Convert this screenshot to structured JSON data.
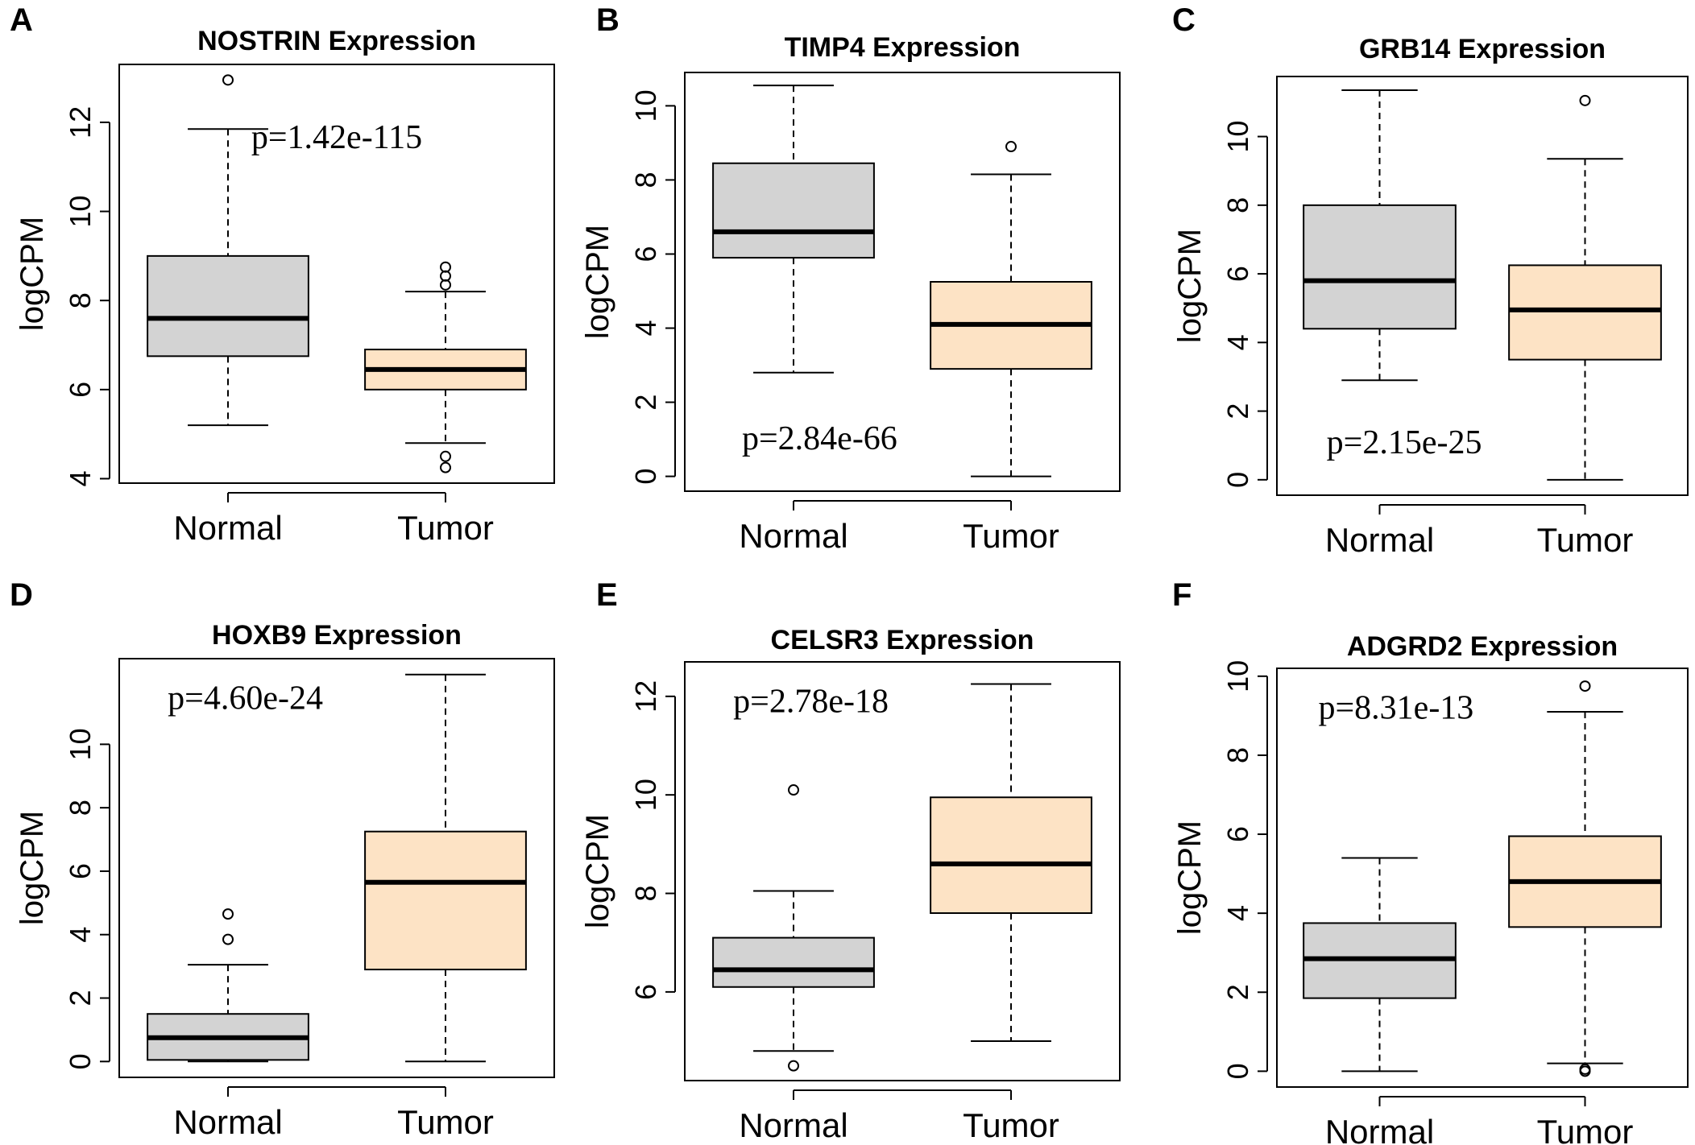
{
  "figure": {
    "categories": [
      "Normal",
      "Tumor"
    ],
    "colors": {
      "Normal": "#d3d3d3",
      "Tumor": "#fde3c5"
    },
    "ylabel": "logCPM"
  },
  "chart_data": [
    {
      "panel": "A",
      "type": "boxplot",
      "title": "NOSTRIN Expression",
      "xlabel": "",
      "ylabel": "logCPM",
      "ylim": [
        3.9,
        13.3
      ],
      "yticks": [
        4,
        6,
        8,
        10,
        12
      ],
      "p_value": "p=1.42e-115",
      "p_position": "upper-center",
      "categories": [
        "Normal",
        "Tumor"
      ],
      "boxes": [
        {
          "category": "Normal",
          "min": 5.2,
          "q1": 6.75,
          "median": 7.6,
          "q3": 9.0,
          "max": 11.85,
          "outliers": [
            12.95
          ]
        },
        {
          "category": "Tumor",
          "min": 4.8,
          "q1": 6.0,
          "median": 6.45,
          "q3": 6.9,
          "max": 8.2,
          "outliers": [
            8.35,
            8.55,
            8.75,
            4.5,
            4.25
          ]
        }
      ]
    },
    {
      "panel": "B",
      "type": "boxplot",
      "title": "TIMP4 Expression",
      "xlabel": "",
      "ylabel": "logCPM",
      "ylim": [
        -0.4,
        10.9
      ],
      "yticks": [
        0,
        2,
        4,
        6,
        8,
        10
      ],
      "p_value": "p=2.84e-66",
      "p_position": "lower-left",
      "categories": [
        "Normal",
        "Tumor"
      ],
      "boxes": [
        {
          "category": "Normal",
          "min": 2.8,
          "q1": 5.9,
          "median": 6.6,
          "q3": 8.45,
          "max": 10.55,
          "outliers": []
        },
        {
          "category": "Tumor",
          "min": 0.0,
          "q1": 2.9,
          "median": 4.1,
          "q3": 5.25,
          "max": 8.15,
          "outliers": [
            8.9
          ]
        }
      ]
    },
    {
      "panel": "C",
      "type": "boxplot",
      "title": "GRB14 Expression",
      "xlabel": "",
      "ylabel": "logCPM",
      "ylim": [
        -0.45,
        11.75
      ],
      "yticks": [
        0,
        2,
        4,
        6,
        8,
        10
      ],
      "p_value": "p=2.15e-25",
      "p_position": "lower-left",
      "categories": [
        "Normal",
        "Tumor"
      ],
      "boxes": [
        {
          "category": "Normal",
          "min": 2.9,
          "q1": 4.4,
          "median": 5.8,
          "q3": 8.0,
          "max": 11.35,
          "outliers": []
        },
        {
          "category": "Tumor",
          "min": 0.0,
          "q1": 3.5,
          "median": 4.95,
          "q3": 6.25,
          "max": 9.35,
          "outliers": [
            11.05
          ]
        }
      ]
    },
    {
      "panel": "D",
      "type": "boxplot",
      "title": "HOXB9 Expression",
      "xlabel": "",
      "ylabel": "logCPM",
      "ylim": [
        -0.5,
        12.7
      ],
      "yticks": [
        0,
        2,
        4,
        6,
        8,
        10
      ],
      "p_value": "p=4.60e-24",
      "p_position": "upper-left",
      "categories": [
        "Normal",
        "Tumor"
      ],
      "boxes": [
        {
          "category": "Normal",
          "min": 0.0,
          "q1": 0.05,
          "median": 0.75,
          "q3": 1.5,
          "max": 3.05,
          "outliers": [
            3.85,
            4.65
          ]
        },
        {
          "category": "Tumor",
          "min": 0.0,
          "q1": 2.9,
          "median": 5.65,
          "q3": 7.25,
          "max": 12.2,
          "outliers": []
        }
      ]
    },
    {
      "panel": "E",
      "type": "boxplot",
      "title": "CELSR3 Expression",
      "xlabel": "",
      "ylabel": "logCPM",
      "ylim": [
        4.2,
        12.7
      ],
      "yticks": [
        6,
        8,
        10,
        12
      ],
      "p_value": "p=2.78e-18",
      "p_position": "upper-left",
      "categories": [
        "Normal",
        "Tumor"
      ],
      "boxes": [
        {
          "category": "Normal",
          "min": 4.8,
          "q1": 6.1,
          "median": 6.45,
          "q3": 7.1,
          "max": 8.05,
          "outliers": [
            10.1,
            4.5
          ]
        },
        {
          "category": "Tumor",
          "min": 5.0,
          "q1": 7.6,
          "median": 8.6,
          "q3": 9.95,
          "max": 12.25,
          "outliers": []
        }
      ]
    },
    {
      "panel": "F",
      "type": "boxplot",
      "title": "ADGRD2 Expression",
      "xlabel": "",
      "ylabel": "logCPM",
      "ylim": [
        -0.4,
        10.2
      ],
      "yticks": [
        0,
        2,
        4,
        6,
        8,
        10
      ],
      "p_value": "p=8.31e-13",
      "p_position": "upper-left",
      "categories": [
        "Normal",
        "Tumor"
      ],
      "boxes": [
        {
          "category": "Normal",
          "min": 0.0,
          "q1": 1.85,
          "median": 2.85,
          "q3": 3.75,
          "max": 5.4,
          "outliers": []
        },
        {
          "category": "Tumor",
          "min": 0.2,
          "q1": 3.65,
          "median": 4.8,
          "q3": 5.95,
          "max": 9.1,
          "outliers": [
            9.75,
            0.05,
            0.0
          ]
        }
      ]
    }
  ]
}
